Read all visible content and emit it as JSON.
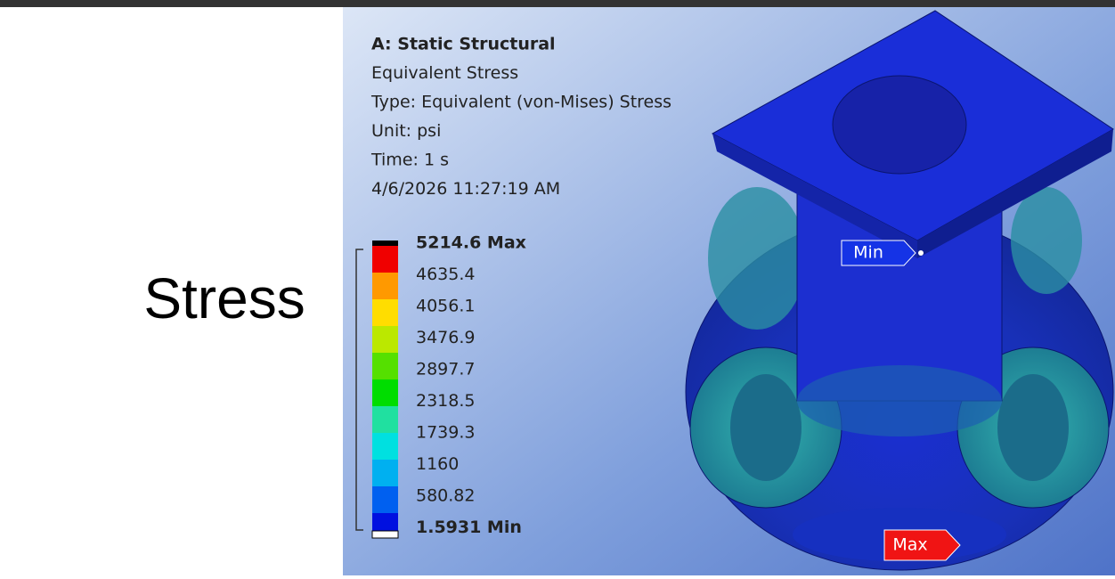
{
  "slide": {
    "title": "Stress"
  },
  "result": {
    "header": [
      "A: Static Structural",
      "Equivalent Stress",
      "Type: Equivalent (von-Mises) Stress",
      "Unit: psi",
      "Time: 1 s",
      "4/6/2026 11:27:19 AM"
    ],
    "legend": [
      "5214.6 Max",
      "4635.4",
      "4056.1",
      "3476.9",
      "2897.7",
      "2318.5",
      "1739.3",
      "1160",
      "580.82",
      "1.5931 Min"
    ],
    "min_marker": "Min",
    "max_marker": "Max"
  }
}
